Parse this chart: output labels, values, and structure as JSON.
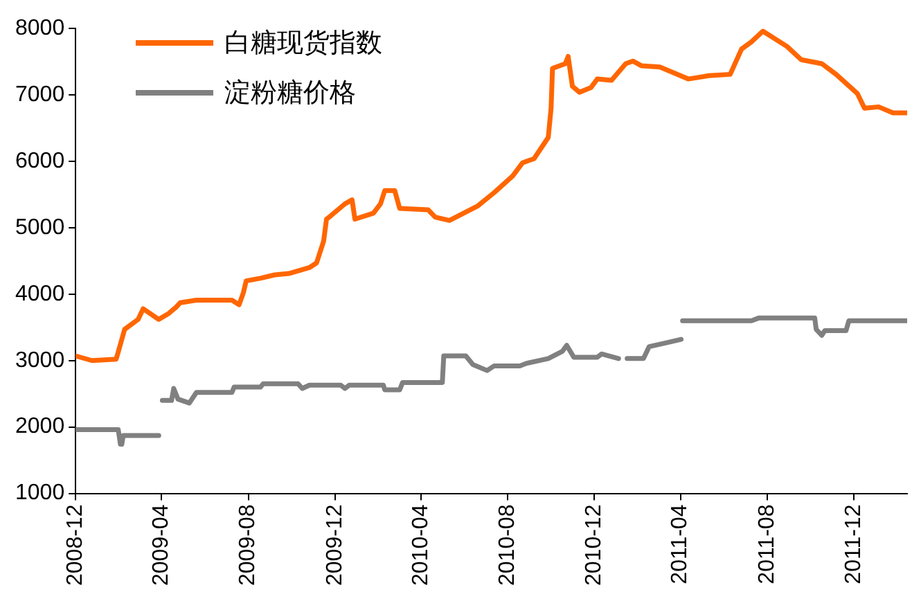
{
  "chart_data": {
    "type": "line",
    "xlim": [
      "2008-12-01",
      "2012-02-14"
    ],
    "xticks": [
      "2008-12",
      "2009-04",
      "2009-08",
      "2009-12",
      "2010-04",
      "2010-08",
      "2010-12",
      "2011-04",
      "2011-08",
      "2011-12"
    ],
    "ylim": [
      1000,
      8000
    ],
    "yticks": [
      1000,
      2000,
      3000,
      4000,
      5000,
      6000,
      7000,
      8000
    ],
    "grid": false,
    "legend": "top left",
    "marker": "none",
    "line_style": "solid",
    "series": [
      {
        "name": "白糖现货指数",
        "color": "#ff6600",
        "x": [
          "2008-12-01",
          "2008-12-24",
          "2009-01-27",
          "2009-01-30",
          "2009-02-08",
          "2009-02-27",
          "2009-03-06",
          "2009-03-28",
          "2009-04-11",
          "2009-04-21",
          "2009-04-27",
          "2009-05-20",
          "2009-07-09",
          "2009-07-19",
          "2009-07-25",
          "2009-07-29",
          "2009-08-18",
          "2009-09-07",
          "2009-09-27",
          "2009-10-26",
          "2009-11-05",
          "2009-11-15",
          "2009-11-19",
          "2009-11-25",
          "2009-12-15",
          "2009-12-25",
          "2009-12-29",
          "2010-01-24",
          "2010-02-03",
          "2010-02-09",
          "2010-02-23",
          "2010-03-02",
          "2010-04-11",
          "2010-04-21",
          "2010-05-11",
          "2010-05-31",
          "2010-06-20",
          "2010-07-13",
          "2010-08-08",
          "2010-08-22",
          "2010-09-07",
          "2010-09-27",
          "2010-10-01",
          "2010-10-03",
          "2010-10-21",
          "2010-10-25",
          "2010-10-31",
          "2010-11-10",
          "2010-11-26",
          "2010-12-05",
          "2010-12-25",
          "2011-01-14",
          "2011-01-24",
          "2011-02-05",
          "2011-03-03",
          "2011-04-12",
          "2011-05-11",
          "2011-06-10",
          "2011-06-26",
          "2011-07-10",
          "2011-07-26",
          "2011-08-29",
          "2011-09-18",
          "2011-10-17",
          "2011-11-06",
          "2011-12-06",
          "2011-12-16",
          "2012-01-05",
          "2012-01-25",
          "2012-02-14"
        ],
        "values": [
          3070,
          3000,
          3020,
          3130,
          3470,
          3620,
          3780,
          3620,
          3710,
          3800,
          3870,
          3910,
          3910,
          3840,
          4020,
          4200,
          4240,
          4290,
          4310,
          4400,
          4470,
          4800,
          5130,
          5180,
          5360,
          5420,
          5130,
          5220,
          5360,
          5560,
          5560,
          5290,
          5270,
          5160,
          5110,
          5220,
          5330,
          5530,
          5780,
          5980,
          6040,
          6360,
          6800,
          7400,
          7470,
          7580,
          7130,
          7040,
          7110,
          7240,
          7220,
          7470,
          7510,
          7440,
          7420,
          7240,
          7290,
          7310,
          7690,
          7800,
          7960,
          7730,
          7530,
          7470,
          7310,
          7020,
          6800,
          6820,
          6730,
          6730
        ]
      },
      {
        "name": "淀粉糖价格",
        "color": "#808080",
        "x": [
          "2008-12-01",
          "2009-01-30",
          "2009-02-02",
          "2009-02-04",
          "2009-02-06",
          "2009-03-28",
          "2009-03-30",
          "2009-04-02",
          "2009-04-15",
          "2009-04-18",
          "2009-04-24",
          "2009-05-10",
          "2009-05-20",
          "2009-07-09",
          "2009-07-12",
          "2009-08-18",
          "2009-08-22",
          "2009-10-10",
          "2009-10-16",
          "2009-10-26",
          "2009-12-09",
          "2009-12-15",
          "2009-12-21",
          "2010-02-07",
          "2010-02-09",
          "2010-03-02",
          "2010-03-06",
          "2010-05-01",
          "2010-05-03",
          "2010-06-03",
          "2010-06-13",
          "2010-07-03",
          "2010-07-13",
          "2010-08-18",
          "2010-08-28",
          "2010-09-27",
          "2010-10-17",
          "2010-10-23",
          "2010-11-02",
          "2010-12-05",
          "2010-12-11",
          "2011-01-04",
          "2011-01-09",
          "2011-01-16",
          "2011-02-08",
          "2011-02-16",
          "2011-03-13",
          "2011-04-02",
          "2011-04-03",
          "2011-04-04",
          "2011-07-10",
          "2011-07-20",
          "2011-10-07",
          "2011-10-09",
          "2011-10-17",
          "2011-10-21",
          "2011-11-20",
          "2011-11-24",
          "2012-02-14"
        ],
        "values": [
          1960,
          1960,
          1740,
          1740,
          1870,
          1870,
          null,
          2400,
          2400,
          2580,
          2420,
          2360,
          2520,
          2520,
          2600,
          2600,
          2650,
          2650,
          2580,
          2630,
          2630,
          2580,
          2630,
          2630,
          2560,
          2560,
          2670,
          2670,
          3070,
          3070,
          2940,
          2850,
          2920,
          2920,
          2960,
          3030,
          3140,
          3230,
          3050,
          3050,
          3100,
          3030,
          null,
          3030,
          3030,
          3210,
          3270,
          3320,
          null,
          3600,
          3600,
          3640,
          3640,
          3470,
          3380,
          3450,
          3450,
          3600,
          3600
        ]
      }
    ]
  }
}
